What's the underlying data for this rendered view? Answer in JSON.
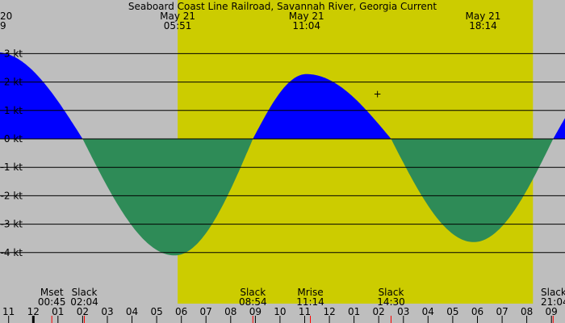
{
  "chart_data": {
    "type": "area",
    "title": "Seaboard Coast Line Railroad, Savannah River, Georgia Current",
    "y_ticks": [
      {
        "value": 3,
        "label": "3 kt"
      },
      {
        "value": 2,
        "label": "2 kt"
      },
      {
        "value": 1,
        "label": "1 kt"
      },
      {
        "value": 0,
        "label": "0 kt"
      },
      {
        "value": -1,
        "label": "-1 kt"
      },
      {
        "value": -2,
        "label": "-2 kt"
      },
      {
        "value": -3,
        "label": "-3 kt"
      },
      {
        "value": -4,
        "label": "-4 kt"
      }
    ],
    "ylim": [
      -4.4,
      3.3
    ],
    "xlim_hours": [
      -13.35,
      9.55
    ],
    "hour_ticks": [
      {
        "hour": -13,
        "label": "11"
      },
      {
        "hour": -12,
        "label": "12"
      },
      {
        "hour": -11,
        "label": "01"
      },
      {
        "hour": -10,
        "label": "02"
      },
      {
        "hour": -9,
        "label": "03"
      },
      {
        "hour": -8,
        "label": "04"
      },
      {
        "hour": -7,
        "label": "05"
      },
      {
        "hour": -6,
        "label": "06"
      },
      {
        "hour": -5,
        "label": "07"
      },
      {
        "hour": -4,
        "label": "08"
      },
      {
        "hour": -3,
        "label": "09"
      },
      {
        "hour": -2,
        "label": "10"
      },
      {
        "hour": -1,
        "label": "11"
      },
      {
        "hour": 0,
        "label": "12"
      },
      {
        "hour": 1,
        "label": "01"
      },
      {
        "hour": 2,
        "label": "02"
      },
      {
        "hour": 3,
        "label": "03"
      },
      {
        "hour": 4,
        "label": "04"
      },
      {
        "hour": 5,
        "label": "05"
      },
      {
        "hour": 6,
        "label": "06"
      },
      {
        "hour": 7,
        "label": "07"
      },
      {
        "hour": 8,
        "label": "08"
      },
      {
        "hour": 9,
        "label": "09"
      }
    ],
    "daylight_hours": [
      -6.15,
      8.25
    ],
    "series": [
      {
        "name": "flood",
        "color": "#0000ff"
      },
      {
        "name": "ebb",
        "color": "#2e8b57"
      }
    ],
    "curve_points": [
      {
        "hour": -13.5,
        "value": 3.05
      },
      {
        "hour": -10.0,
        "value": 0
      },
      {
        "hour": -6.27,
        "value": -4.1
      },
      {
        "hour": -3.1,
        "value": 0
      },
      {
        "hour": -0.93,
        "value": 2.28
      },
      {
        "hour": 2.5,
        "value": 0
      },
      {
        "hour": 5.85,
        "value": -3.63
      },
      {
        "hour": 9.07,
        "value": 0
      },
      {
        "hour": 11.5,
        "value": 2.4
      }
    ],
    "top_labels": [
      {
        "hour": -13.5,
        "line1": "20",
        "line2": "9"
      },
      {
        "hour": -6.15,
        "line1": "May 21",
        "line2": "05:51"
      },
      {
        "hour": -0.93,
        "line1": "May 21",
        "line2": "11:04"
      },
      {
        "hour": 6.23,
        "line1": "May 21",
        "line2": "18:14"
      }
    ],
    "events": [
      {
        "hour": -11.25,
        "name": "Mset",
        "time": "00:45",
        "color": "#ff0000"
      },
      {
        "hour": -9.93,
        "name": "Slack",
        "time": "02:04",
        "color": "#ff0000"
      },
      {
        "hour": -3.1,
        "name": "Slack",
        "time": "08:54",
        "color": "#ff0000"
      },
      {
        "hour": -0.77,
        "name": "Mrise",
        "time": "11:14",
        "color": "#ff0000"
      },
      {
        "hour": 2.5,
        "name": "Slack",
        "time": "14:30",
        "color": "#ff0000"
      },
      {
        "hour": 9.07,
        "name": "Slack",
        "time": "21:04",
        "color": "#ff0000"
      }
    ],
    "marker": {
      "hour": 1.95,
      "value": 1.6,
      "label": "+"
    },
    "colors": {
      "night": "#bebebe",
      "day": "#cccc00",
      "grid": "#000000"
    }
  }
}
